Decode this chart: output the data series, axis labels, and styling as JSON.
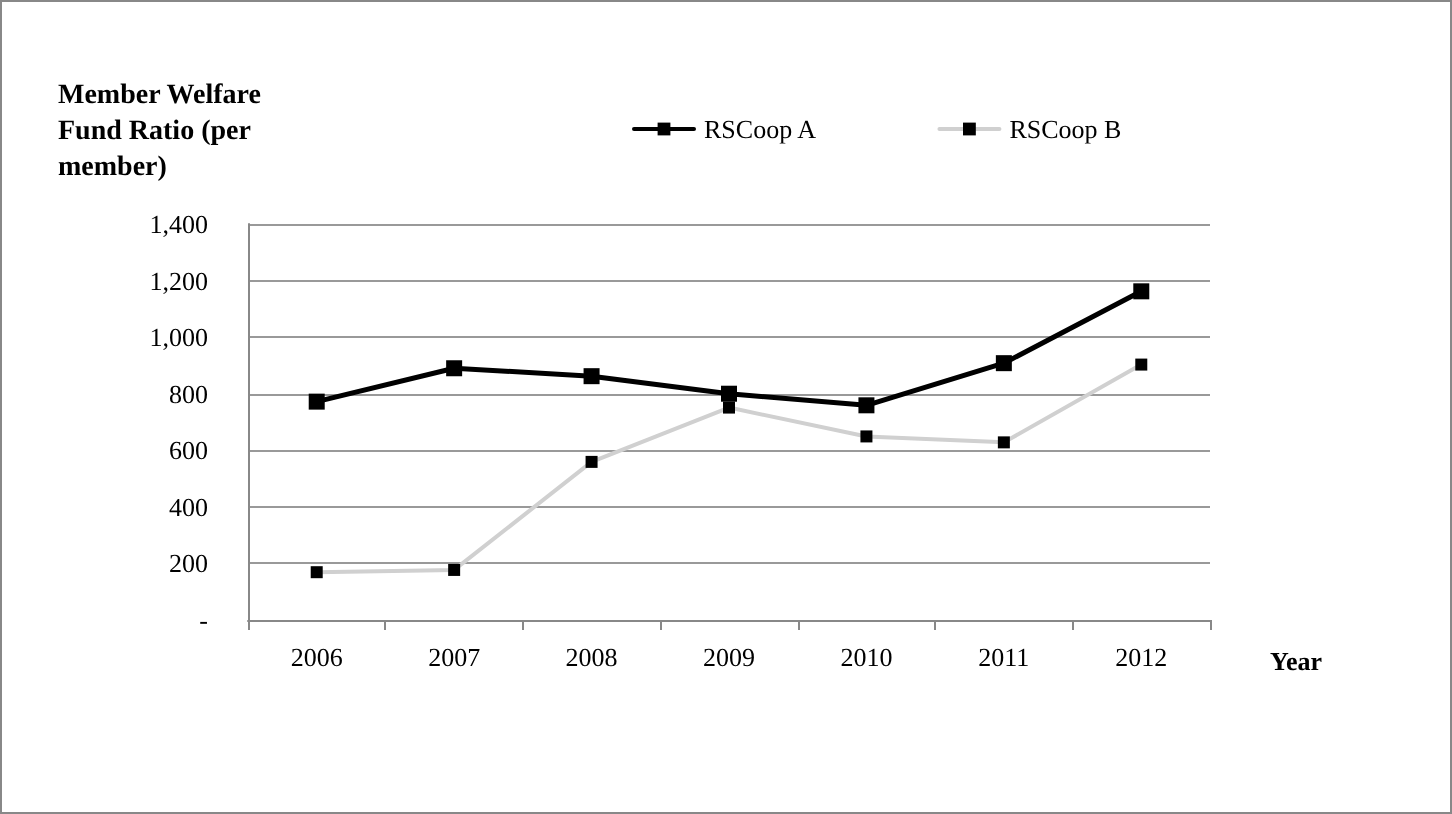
{
  "chart_data": {
    "type": "line",
    "xlabel": "Year",
    "ylabel": "Member Welfare Fund Ratio (per member)",
    "categories": [
      "2006",
      "2007",
      "2008",
      "2009",
      "2010",
      "2011",
      "2012"
    ],
    "series": [
      {
        "name": "RSCoop A",
        "color": "#000000",
        "values": [
          772,
          890,
          862,
          800,
          759,
          908,
          1162
        ]
      },
      {
        "name": "RSCoop B",
        "color": "#d0d0d0",
        "values": [
          169,
          177,
          559,
          751,
          649,
          628,
          903
        ]
      }
    ],
    "ylim": [
      0,
      1400
    ],
    "yticks": [
      {
        "value": 0,
        "label": "-"
      },
      200,
      400,
      600,
      800,
      {
        "value": 1000,
        "label": "1,000"
      },
      {
        "value": 1200,
        "label": "1,200"
      },
      {
        "value": 1400,
        "label": "1,400"
      }
    ],
    "grid": "y",
    "legend": "top",
    "marker": "square",
    "line_style": "solid"
  }
}
